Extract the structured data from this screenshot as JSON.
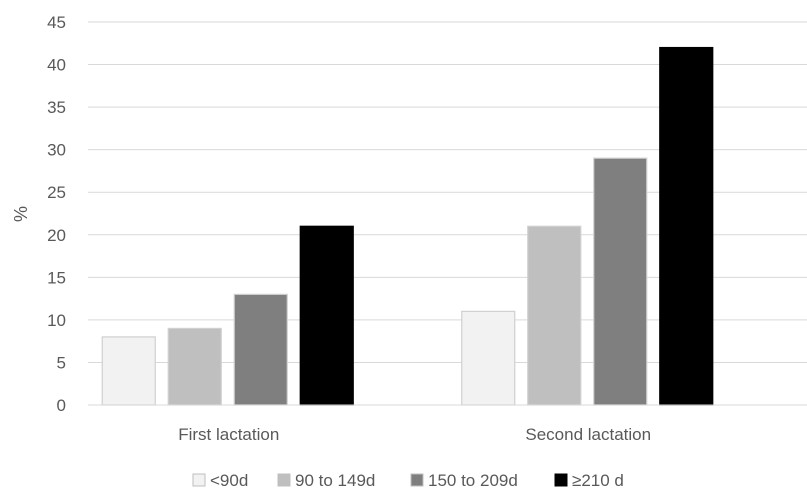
{
  "chart_data": {
    "type": "bar",
    "title": "",
    "xlabel": "",
    "ylabel": "%",
    "ylim": [
      0,
      45
    ],
    "yticks": [
      0,
      5,
      10,
      15,
      20,
      25,
      30,
      35,
      40,
      45
    ],
    "grid": true,
    "legend_position": "bottom",
    "categories": [
      "First lactation",
      "Second lactation"
    ],
    "series": [
      {
        "name": "<90d",
        "color": "#f2f2f2",
        "values": [
          8,
          11
        ]
      },
      {
        "name": "90 to 149d",
        "color": "#bfbfbf",
        "values": [
          9,
          21
        ]
      },
      {
        "name": "150 to 209d",
        "color": "#7f7f7f",
        "values": [
          13,
          29
        ]
      },
      {
        "name": "≥210 d",
        "color": "#000000",
        "values": [
          21,
          42
        ]
      }
    ]
  }
}
